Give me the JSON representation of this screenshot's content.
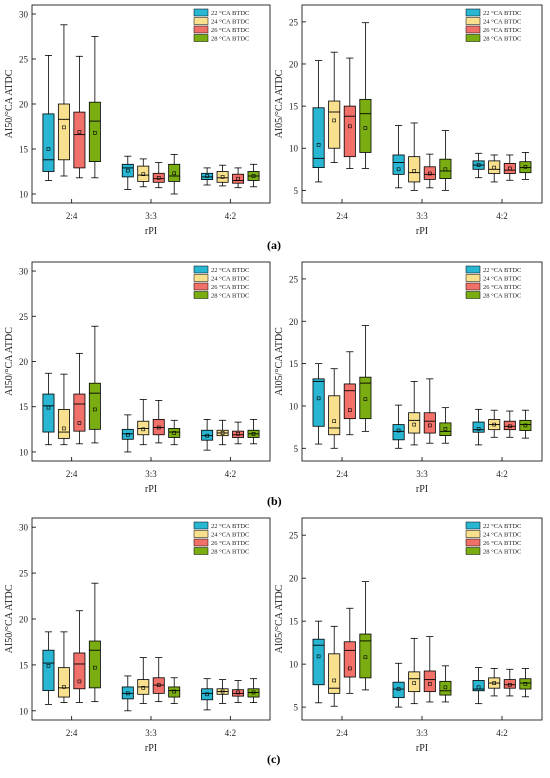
{
  "figure": {
    "captions": [
      "(a)",
      "(b)",
      "(c)"
    ]
  },
  "legend_entries": [
    "22 °CA BTDC",
    "24 °CA BTDC",
    "26 °CA BTDC",
    "28 °CA BTDC"
  ],
  "series_colors": [
    "#29b6d2",
    "#f9e08e",
    "#f2706a",
    "#7aad12"
  ],
  "chart_data": [
    {
      "type": "box",
      "panel": "a",
      "side": "left",
      "xlabel": "rPI",
      "ylabel": "AI50/°CA ATDC",
      "categories": [
        "2:4",
        "3:3",
        "4:2"
      ],
      "ylim": [
        9,
        31
      ],
      "yticks": [
        10,
        15,
        20,
        25,
        30
      ],
      "series": [
        {
          "name": "22 °CA BTDC",
          "boxes": [
            [
              11.5,
              12.5,
              13.8,
              18.9,
              25.4,
              15.0
            ],
            [
              10.5,
              11.9,
              12.9,
              13.3,
              14.2,
              12.6
            ],
            [
              11.0,
              11.6,
              11.9,
              12.3,
              12.9,
              12.0
            ]
          ]
        },
        {
          "name": "24 °CA BTDC",
          "boxes": [
            [
              12.0,
              13.8,
              18.3,
              20.0,
              28.8,
              17.4
            ],
            [
              10.8,
              11.4,
              12.1,
              13.1,
              13.9,
              12.2
            ],
            [
              10.9,
              11.3,
              11.8,
              12.5,
              13.2,
              11.9
            ]
          ]
        },
        {
          "name": "26 °CA BTDC",
          "boxes": [
            [
              11.8,
              12.9,
              16.6,
              19.1,
              25.3,
              16.9
            ],
            [
              10.7,
              11.3,
              11.7,
              12.3,
              13.5,
              11.8
            ],
            [
              10.7,
              11.2,
              11.5,
              12.2,
              12.9,
              11.7
            ]
          ]
        },
        {
          "name": "28 °CA BTDC",
          "boxes": [
            [
              11.8,
              13.6,
              18.1,
              20.2,
              27.5,
              16.8
            ],
            [
              10.0,
              11.4,
              12.0,
              13.3,
              14.4,
              12.3
            ],
            [
              10.8,
              11.5,
              12.0,
              12.5,
              13.3,
              12.0
            ]
          ]
        }
      ]
    },
    {
      "type": "box",
      "panel": "a",
      "side": "right",
      "xlabel": "rPI",
      "ylabel": "AI05/°CA ATDC",
      "categories": [
        "2:4",
        "3:3",
        "4:2"
      ],
      "ylim": [
        3.5,
        27
      ],
      "yticks": [
        5,
        10,
        15,
        20,
        25
      ],
      "series": [
        {
          "name": "22 °CA BTDC",
          "boxes": [
            [
              6.0,
              7.7,
              8.8,
              14.8,
              20.4,
              10.4
            ],
            [
              5.3,
              6.9,
              8.3,
              9.2,
              12.7,
              7.5
            ],
            [
              6.5,
              7.5,
              8.0,
              8.5,
              9.4,
              8.0
            ]
          ]
        },
        {
          "name": "24 °CA BTDC",
          "boxes": [
            [
              8.3,
              10.0,
              14.3,
              15.6,
              21.4,
              13.3
            ],
            [
              5.0,
              6.0,
              7.1,
              9.0,
              13.0,
              7.3
            ],
            [
              6.0,
              7.0,
              7.5,
              8.5,
              9.2,
              7.7
            ]
          ]
        },
        {
          "name": "26 °CA BTDC",
          "boxes": [
            [
              7.6,
              9.0,
              13.8,
              15.0,
              20.7,
              12.6
            ],
            [
              5.3,
              6.3,
              6.9,
              7.8,
              9.3,
              7.0
            ],
            [
              6.2,
              7.0,
              7.4,
              8.2,
              9.2,
              7.6
            ]
          ]
        },
        {
          "name": "28 °CA BTDC",
          "boxes": [
            [
              7.6,
              9.5,
              14.1,
              15.8,
              24.9,
              12.4
            ],
            [
              5.0,
              6.4,
              7.3,
              8.7,
              12.1,
              7.5
            ],
            [
              6.3,
              7.1,
              7.7,
              8.4,
              9.5,
              7.8
            ]
          ]
        }
      ]
    },
    {
      "type": "box",
      "panel": "b",
      "side": "left",
      "xlabel": "rPI",
      "ylabel": "AI50/°CA ATDC",
      "categories": [
        "2:4",
        "3:3",
        "4:2"
      ],
      "ylim": [
        9,
        31
      ],
      "yticks": [
        10,
        15,
        20,
        25,
        30
      ],
      "series": [
        {
          "name": "22 °CA BTDC",
          "boxes": [
            [
              10.8,
              12.2,
              15.1,
              16.4,
              18.7,
              14.9
            ],
            [
              10.0,
              11.4,
              12.0,
              12.5,
              14.1,
              11.9
            ],
            [
              10.2,
              11.3,
              11.8,
              12.4,
              13.6,
              11.8
            ]
          ]
        },
        {
          "name": "24 °CA BTDC",
          "boxes": [
            [
              10.8,
              11.5,
              12.2,
              14.7,
              18.6,
              12.6
            ],
            [
              10.8,
              11.9,
              12.6,
              13.4,
              15.8,
              12.5
            ],
            [
              10.8,
              11.8,
              12.1,
              12.4,
              13.5,
              12.1
            ]
          ]
        },
        {
          "name": "26 °CA BTDC",
          "boxes": [
            [
              10.9,
              12.3,
              15.3,
              16.4,
              20.9,
              13.2
            ],
            [
              11.0,
              11.9,
              12.7,
              13.6,
              15.7,
              12.7
            ],
            [
              10.9,
              11.6,
              11.9,
              12.3,
              13.3,
              12.0
            ]
          ]
        },
        {
          "name": "28 °CA BTDC",
          "boxes": [
            [
              11.0,
              12.5,
              16.5,
              17.6,
              23.9,
              14.7
            ],
            [
              10.8,
              11.6,
              12.2,
              12.6,
              13.5,
              12.1
            ],
            [
              10.9,
              11.6,
              12.0,
              12.4,
              13.6,
              12.0
            ]
          ]
        }
      ]
    },
    {
      "type": "box",
      "panel": "b",
      "side": "right",
      "xlabel": "rPI",
      "ylabel": "AI05/°CA ATDC",
      "categories": [
        "2:4",
        "3:3",
        "4:2"
      ],
      "ylim": [
        3.5,
        27
      ],
      "yticks": [
        5,
        10,
        15,
        20,
        25
      ],
      "series": [
        {
          "name": "22 °CA BTDC",
          "boxes": [
            [
              5.5,
              7.6,
              12.9,
              13.2,
              15.0,
              10.9
            ],
            [
              5.0,
              6.0,
              7.0,
              7.8,
              10.1,
              7.1
            ],
            [
              5.4,
              6.9,
              7.2,
              8.1,
              9.6,
              7.3
            ]
          ]
        },
        {
          "name": "24 °CA BTDC",
          "boxes": [
            [
              5.0,
              6.6,
              7.4,
              11.2,
              14.4,
              8.2
            ],
            [
              5.4,
              6.8,
              8.3,
              9.2,
              12.9,
              7.8
            ],
            [
              6.3,
              7.2,
              7.8,
              8.4,
              9.5,
              7.8
            ]
          ]
        },
        {
          "name": "26 °CA BTDC",
          "boxes": [
            [
              6.6,
              8.5,
              11.8,
              12.6,
              16.4,
              9.5
            ],
            [
              5.6,
              6.8,
              8.2,
              9.2,
              13.2,
              7.7
            ],
            [
              6.3,
              7.2,
              7.6,
              8.2,
              9.4,
              7.6
            ]
          ]
        },
        {
          "name": "28 °CA BTDC",
          "boxes": [
            [
              7.0,
              8.5,
              12.7,
              13.4,
              19.5,
              10.8
            ],
            [
              5.6,
              6.5,
              7.0,
              8.0,
              9.8,
              7.3
            ],
            [
              6.2,
              7.1,
              7.8,
              8.3,
              9.5,
              7.7
            ]
          ]
        }
      ]
    },
    {
      "type": "box",
      "panel": "c",
      "side": "left",
      "xlabel": "rPI",
      "ylabel": "AI50/°CA ATDC",
      "categories": [
        "2:4",
        "3:3",
        "4:2"
      ],
      "ylim": [
        9,
        31
      ],
      "yticks": [
        10,
        15,
        20,
        25,
        30
      ],
      "series": [
        {
          "name": "22 °CA BTDC",
          "boxes": [
            [
              10.7,
              12.2,
              15.2,
              16.6,
              18.6,
              14.9
            ],
            [
              10.0,
              11.3,
              11.9,
              12.6,
              13.8,
              11.9
            ],
            [
              10.1,
              11.2,
              11.9,
              12.4,
              13.5,
              11.8
            ]
          ]
        },
        {
          "name": "24 °CA BTDC",
          "boxes": [
            [
              10.9,
              11.5,
              12.5,
              14.7,
              18.6,
              12.6
            ],
            [
              10.8,
              11.8,
              12.6,
              13.4,
              15.8,
              12.5
            ],
            [
              10.8,
              11.8,
              12.1,
              12.4,
              13.4,
              12.1
            ]
          ]
        },
        {
          "name": "26 °CA BTDC",
          "boxes": [
            [
              10.9,
              12.4,
              15.1,
              16.3,
              20.9,
              13.2
            ],
            [
              11.0,
              11.9,
              12.8,
              13.6,
              15.8,
              12.8
            ],
            [
              10.9,
              11.6,
              11.9,
              12.3,
              13.3,
              12.0
            ]
          ]
        },
        {
          "name": "28 °CA BTDC",
          "boxes": [
            [
              11.0,
              12.5,
              16.6,
              17.6,
              23.9,
              14.7
            ],
            [
              10.8,
              11.5,
              12.2,
              12.6,
              13.6,
              12.1
            ],
            [
              10.9,
              11.5,
              12.0,
              12.4,
              13.5,
              12.0
            ]
          ]
        }
      ]
    },
    {
      "type": "box",
      "panel": "c",
      "side": "right",
      "xlabel": "rPI",
      "ylabel": "AI05/°CA ATDC",
      "categories": [
        "2:4",
        "3:3",
        "4:2"
      ],
      "ylim": [
        3.5,
        27
      ],
      "yticks": [
        5,
        10,
        15,
        20,
        25
      ],
      "series": [
        {
          "name": "22 °CA BTDC",
          "boxes": [
            [
              5.5,
              7.6,
              12.2,
              12.9,
              15.0,
              10.9
            ],
            [
              5.0,
              6.1,
              7.1,
              7.9,
              10.1,
              7.1
            ],
            [
              5.4,
              6.9,
              7.1,
              8.1,
              9.6,
              7.3
            ]
          ]
        },
        {
          "name": "24 °CA BTDC",
          "boxes": [
            [
              5.1,
              6.6,
              7.2,
              11.2,
              14.4,
              8.1
            ],
            [
              5.4,
              6.8,
              8.3,
              9.1,
              13.0,
              7.8
            ],
            [
              6.3,
              7.2,
              7.8,
              8.4,
              9.5,
              7.8
            ]
          ]
        },
        {
          "name": "26 °CA BTDC",
          "boxes": [
            [
              6.6,
              8.5,
              11.6,
              12.6,
              16.5,
              9.5
            ],
            [
              5.6,
              6.8,
              8.2,
              9.2,
              13.2,
              7.7
            ],
            [
              6.3,
              7.2,
              7.6,
              8.2,
              9.4,
              7.6
            ]
          ]
        },
        {
          "name": "28 °CA BTDC",
          "boxes": [
            [
              7.0,
              8.4,
              12.7,
              13.5,
              19.6,
              10.8
            ],
            [
              5.6,
              6.4,
              6.9,
              8.0,
              9.8,
              7.3
            ],
            [
              6.2,
              7.1,
              7.8,
              8.3,
              9.5,
              7.7
            ]
          ]
        }
      ]
    }
  ]
}
